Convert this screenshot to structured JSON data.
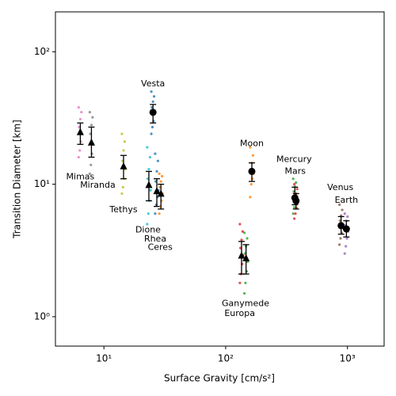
{
  "chart_data": {
    "type": "scatter",
    "xlabel": "Surface Gravity [cm/s²]",
    "ylabel": "Transition Diameter [km]",
    "xlim": [
      4,
      2000
    ],
    "ylim": [
      0.6,
      200
    ],
    "xscale": "log",
    "yscale": "log",
    "xticks": [
      {
        "value": 10,
        "label": "10¹"
      },
      {
        "value": 100,
        "label": "10²"
      },
      {
        "value": 1000,
        "label": "10³"
      }
    ],
    "yticks": [
      {
        "value": 1,
        "label": "10⁰"
      },
      {
        "value": 10,
        "label": "10¹"
      },
      {
        "value": 100,
        "label": "10²"
      }
    ],
    "series": [
      {
        "name": "Mimas",
        "color": "#e377c2",
        "marker": "triangle",
        "x": 6.4,
        "y": 24.8,
        "low": 20,
        "high": 29,
        "samples": [
          16,
          18,
          21,
          24,
          27,
          31,
          35,
          38
        ]
      },
      {
        "name": "Miranda",
        "color": "#7f7f7f",
        "marker": "triangle",
        "x": 7.9,
        "y": 20.7,
        "low": 16,
        "high": 27,
        "samples": [
          12,
          14,
          17,
          20,
          24,
          28,
          32,
          35
        ]
      },
      {
        "name": "Tethys",
        "color": "#bcbd22",
        "marker": "triangle",
        "x": 14.5,
        "y": 13.7,
        "low": 11,
        "high": 16.5,
        "samples": [
          8.5,
          9.5,
          11,
          13,
          15,
          18,
          21,
          24
        ]
      },
      {
        "name": "Dione",
        "color": "#17becf",
        "marker": "triangle",
        "x": 23.4,
        "y": 9.9,
        "low": 7.5,
        "high": 12.5,
        "samples": [
          5,
          6,
          7.5,
          9,
          11,
          13,
          16,
          19
        ]
      },
      {
        "name": "Rhea",
        "color": "#1f77b4",
        "marker": "triangle",
        "x": 27.2,
        "y": 8.9,
        "low": 6.8,
        "high": 11,
        "samples": [
          6,
          7,
          8,
          9,
          10.5,
          12.5,
          15,
          17
        ]
      },
      {
        "name": "Ceres",
        "color": "#ff7f0e",
        "marker": "triangle",
        "x": 29.4,
        "y": 8.5,
        "low": 6.5,
        "high": 10,
        "samples": [
          6,
          6.8,
          7.5,
          8.5,
          9.5,
          10.5,
          11.5,
          12
        ]
      },
      {
        "name": "Vesta",
        "color": "#1f77b4",
        "marker": "circle",
        "x": 25.3,
        "y": 34.9,
        "low": 29,
        "high": 40,
        "samples": [
          24,
          27,
          30,
          34,
          38,
          42,
          46,
          50
        ]
      },
      {
        "name": "Moon",
        "color": "#ff7f0e",
        "marker": "circle",
        "x": 164,
        "y": 12.5,
        "low": 10.5,
        "high": 14.5,
        "samples": [
          8,
          10,
          11,
          12,
          13,
          14.5,
          16.5,
          19
        ]
      },
      {
        "name": "Mercury",
        "color": "#2ca02c",
        "marker": "circle",
        "x": 370,
        "y": 7.9,
        "low": 7,
        "high": 9.5,
        "samples": [
          6,
          6.7,
          7.3,
          8,
          8.8,
          9.6,
          10.3,
          11
        ]
      },
      {
        "name": "Mars",
        "color": "#d62728",
        "marker": "circle",
        "x": 378,
        "y": 7.5,
        "low": 6.5,
        "high": 8.5,
        "samples": [
          5.5,
          6,
          6.6,
          7.2,
          7.8,
          8.5,
          9.2,
          10
        ]
      },
      {
        "name": "Venus",
        "color": "#8c564b",
        "marker": "circle",
        "x": 887,
        "y": 4.87,
        "low": 4.2,
        "high": 5.7,
        "samples": [
          3.5,
          3.9,
          4.3,
          4.8,
          5.3,
          5.8,
          6.4,
          7
        ]
      },
      {
        "name": "Earth",
        "color": "#9467bd",
        "marker": "circle",
        "x": 980,
        "y": 4.6,
        "low": 4,
        "high": 5.3,
        "samples": [
          3,
          3.4,
          3.9,
          4.4,
          4.9,
          5.3,
          5.7,
          6
        ]
      },
      {
        "name": "Ganymede",
        "color": "#d62728",
        "marker": "triangle",
        "x": 135,
        "y": 2.9,
        "low": 2.1,
        "high": 3.7,
        "samples": [
          1.8,
          2.1,
          2.5,
          2.9,
          3.3,
          3.8,
          4.4,
          5
        ]
      },
      {
        "name": "Europa",
        "color": "#2ca02c",
        "marker": "triangle",
        "x": 147,
        "y": 2.77,
        "low": 2.1,
        "high": 3.5,
        "samples": [
          1.5,
          1.8,
          2.2,
          2.6,
          3,
          3.4,
          3.9,
          4.3
        ]
      }
    ]
  }
}
